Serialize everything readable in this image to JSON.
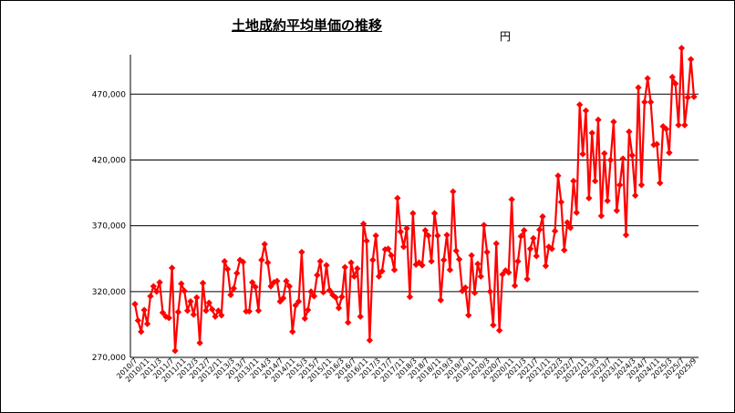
{
  "chart_data": {
    "type": "line",
    "title": "土地成約平均単価の推移",
    "unit_label": "円",
    "ylim": [
      270000,
      500000
    ],
    "y_ticks": [
      {
        "value": 270000,
        "label": "270,000"
      },
      {
        "value": 320000,
        "label": "320,000"
      },
      {
        "value": 370000,
        "label": "370,000"
      },
      {
        "value": 420000,
        "label": "420,000"
      },
      {
        "value": 470000,
        "label": "470,000"
      }
    ],
    "grid": true,
    "x_tick_labels": [
      "2010/7",
      "2010/11",
      "2011/3",
      "2011/7",
      "2011/11",
      "2012/3",
      "2012/7",
      "2012/11",
      "2013/3",
      "2013/7",
      "2013/11",
      "2014/3",
      "2014/7",
      "2014/11",
      "2015/3",
      "2015/7",
      "2015/11",
      "2016/3",
      "2016/7",
      "2016/11",
      "2017/3",
      "2017/7",
      "2017/11",
      "2018/3",
      "2018/7",
      "2018/11",
      "2019/3",
      "2019/7",
      "2019/11",
      "2020/3",
      "2020/7",
      "2020/11",
      "2021/3",
      "2021/7",
      "2021/11",
      "2022/3",
      "2022/7",
      "2022/11",
      "2023/3",
      "2023/7",
      "2023/11",
      "2024/3",
      "2024/7",
      "2024/11",
      "2025/3",
      "2025/7",
      "2025/9"
    ],
    "series": [
      {
        "color": "#ff0000",
        "values": [
          310500,
          298000,
          289500,
          306000,
          295500,
          316500,
          324000,
          320000,
          327000,
          304000,
          301000,
          300000,
          338000,
          275000,
          304500,
          326000,
          320500,
          305500,
          312500,
          302500,
          315500,
          281000,
          326500,
          305500,
          311500,
          306500,
          301000,
          305500,
          302000,
          343000,
          337000,
          317500,
          322500,
          334000,
          344000,
          342500,
          305000,
          305000,
          327000,
          323500,
          305500,
          344000,
          356000,
          342000,
          324000,
          327000,
          328000,
          312500,
          315000,
          328000,
          324000,
          289500,
          309500,
          312500,
          350000,
          299500,
          306000,
          320000,
          316500,
          332500,
          343000,
          319500,
          340000,
          321000,
          317500,
          315500,
          307500,
          316000,
          338500,
          296500,
          342000,
          331500,
          337500,
          301000,
          371500,
          358500,
          283000,
          344000,
          362500,
          331500,
          335500,
          352000,
          352500,
          347500,
          336500,
          391000,
          365500,
          354000,
          368000,
          316000,
          379500,
          340500,
          342000,
          340000,
          366500,
          362500,
          343000,
          379500,
          362500,
          313500,
          344000,
          363000,
          336500,
          396000,
          351000,
          344500,
          320500,
          323000,
          302000,
          347500,
          319000,
          341000,
          331500,
          370500,
          350000,
          320000,
          294500,
          356500,
          290500,
          333000,
          336000,
          334500,
          390000,
          324500,
          343000,
          362000,
          366500,
          329500,
          352500,
          360500,
          347000,
          367000,
          377000,
          339500,
          354000,
          352500,
          366000,
          408000,
          388000,
          351500,
          372500,
          368500,
          404000,
          380000,
          462000,
          424500,
          457500,
          391000,
          440500,
          404000,
          450500,
          377500,
          425000,
          389000,
          420000,
          449000,
          381500,
          401000,
          421000,
          363000,
          441500,
          423500,
          393000,
          475000,
          401000,
          464000,
          482000,
          464000,
          431500,
          432000,
          402500,
          445500,
          443500,
          425500,
          483000,
          478000,
          446500,
          505000,
          446500,
          467500,
          496500,
          468000
        ]
      }
    ]
  }
}
